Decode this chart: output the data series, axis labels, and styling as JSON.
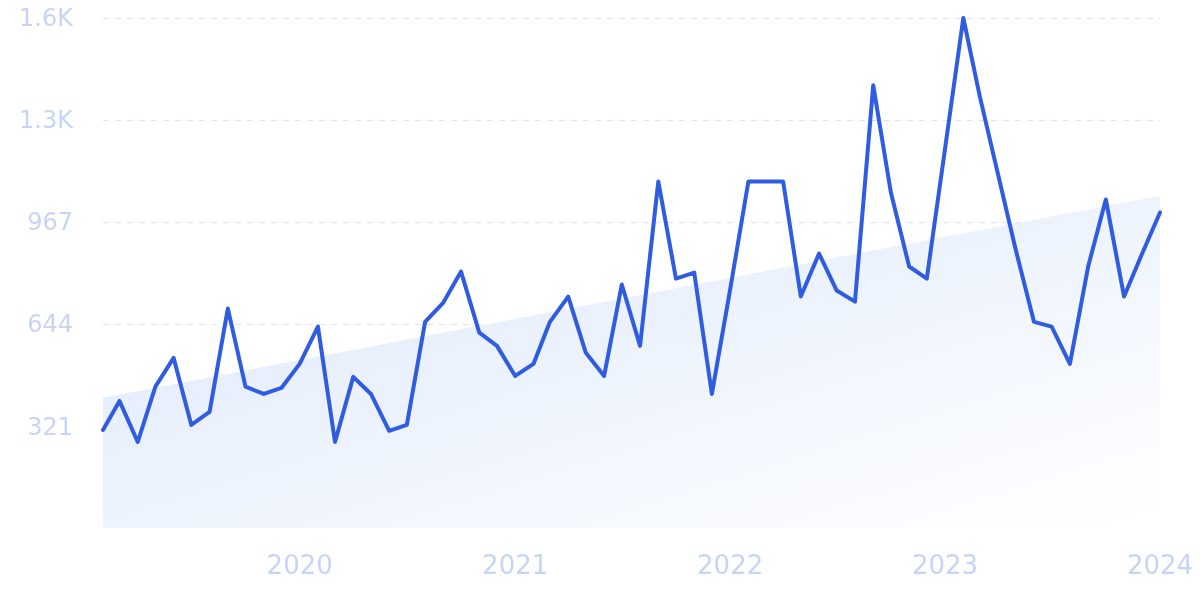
{
  "chart_data": {
    "type": "line",
    "x": [
      "2019-02",
      "2019-03",
      "2019-04",
      "2019-05",
      "2019-06",
      "2019-07",
      "2019-08",
      "2019-09",
      "2019-10",
      "2019-11",
      "2019-12",
      "2020-01",
      "2020-02",
      "2020-03",
      "2020-04",
      "2020-05",
      "2020-06",
      "2020-07",
      "2020-08",
      "2020-09",
      "2020-10",
      "2020-11",
      "2020-12",
      "2021-01",
      "2021-02",
      "2021-03",
      "2021-04",
      "2021-05",
      "2021-06",
      "2021-07",
      "2021-08",
      "2021-09",
      "2021-10",
      "2021-11",
      "2021-12",
      "2022-01",
      "2022-02",
      "2022-03",
      "2022-04",
      "2022-05",
      "2022-06",
      "2022-07",
      "2022-08",
      "2022-09",
      "2022-10",
      "2022-11",
      "2022-12",
      "2023-01",
      "2023-02",
      "2023-03",
      "2023-04",
      "2023-05",
      "2023-06",
      "2023-07",
      "2023-08",
      "2023-09",
      "2023-10",
      "2023-11",
      "2023-12",
      "2024-01"
    ],
    "series": [
      {
        "color": "#2f5ce0",
        "values": [
          310,
          402,
          272,
          447,
          538,
          326,
          367,
          694,
          447,
          424,
          443,
          519,
          637,
          272,
          478,
          424,
          307,
          326,
          652,
          713,
          811,
          618,
          576,
          481,
          519,
          652,
          732,
          554,
          481,
          770,
          576,
          1096,
          789,
          808,
          424,
          754,
          1096,
          1096,
          1096,
          732,
          868,
          751,
          716,
          1400,
          1061,
          827,
          789,
          1200,
          1613,
          1365,
          1118,
          880,
          652,
          637,
          519,
          827,
          1039,
          732,
          865,
          998
        ]
      },
      {
        "type": "area",
        "color": "#dce8fb",
        "x": [
          "2019-02",
          "2024-01"
        ],
        "values": [
          412,
          1051
        ]
      }
    ],
    "xlim": [
      "2019-02",
      "2024-01"
    ],
    "xticks": [
      {
        "value": "2020",
        "label": "2020"
      },
      {
        "value": "2021",
        "label": "2021"
      },
      {
        "value": "2022",
        "label": "2022"
      },
      {
        "value": "2023",
        "label": "2023"
      },
      {
        "value": "2024",
        "label": "2024"
      }
    ],
    "ylim": [
      0,
      1613
    ],
    "yticks": [
      321,
      644,
      967,
      {
        "value": 1290,
        "label": "1.3K"
      },
      {
        "value": 1613,
        "label": "1.6K"
      }
    ],
    "grid": "y",
    "marker": "none",
    "line_style": "solid"
  }
}
